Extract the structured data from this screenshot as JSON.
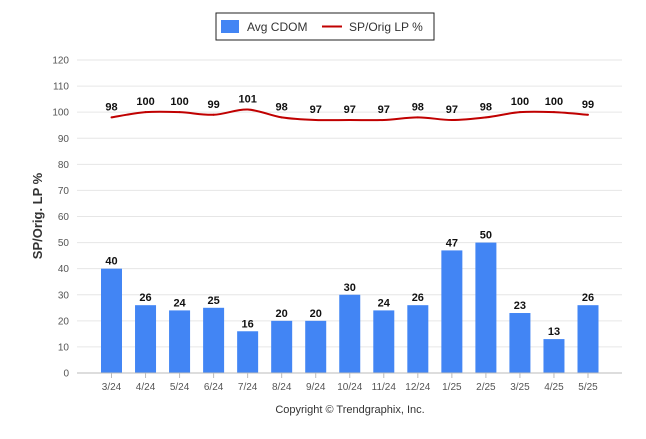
{
  "chart_data": {
    "type": "bar",
    "categories": [
      "3/24",
      "4/24",
      "5/24",
      "6/24",
      "7/24",
      "8/24",
      "9/24",
      "10/24",
      "11/24",
      "12/24",
      "1/25",
      "2/25",
      "3/25",
      "4/25",
      "5/25"
    ],
    "series": [
      {
        "name": "Avg CDOM",
        "type": "bar",
        "values": [
          40,
          26,
          24,
          25,
          16,
          20,
          20,
          30,
          24,
          26,
          47,
          50,
          23,
          13,
          26
        ]
      },
      {
        "name": "SP/Orig LP %",
        "type": "line",
        "values": [
          98,
          100,
          100,
          99,
          101,
          98,
          97,
          97,
          97,
          98,
          97,
          98,
          100,
          100,
          99
        ]
      }
    ],
    "ylabel": "SP/Orig. LP %",
    "ylim": [
      0,
      120
    ],
    "yticks": [
      0,
      10,
      20,
      30,
      40,
      50,
      60,
      70,
      80,
      90,
      100,
      110,
      120
    ],
    "grid": true,
    "legend_position": "top-center",
    "colors": {
      "bar": "#4285f4",
      "line": "#c00000"
    },
    "footer": "Copyright © Trendgraphix, Inc."
  }
}
